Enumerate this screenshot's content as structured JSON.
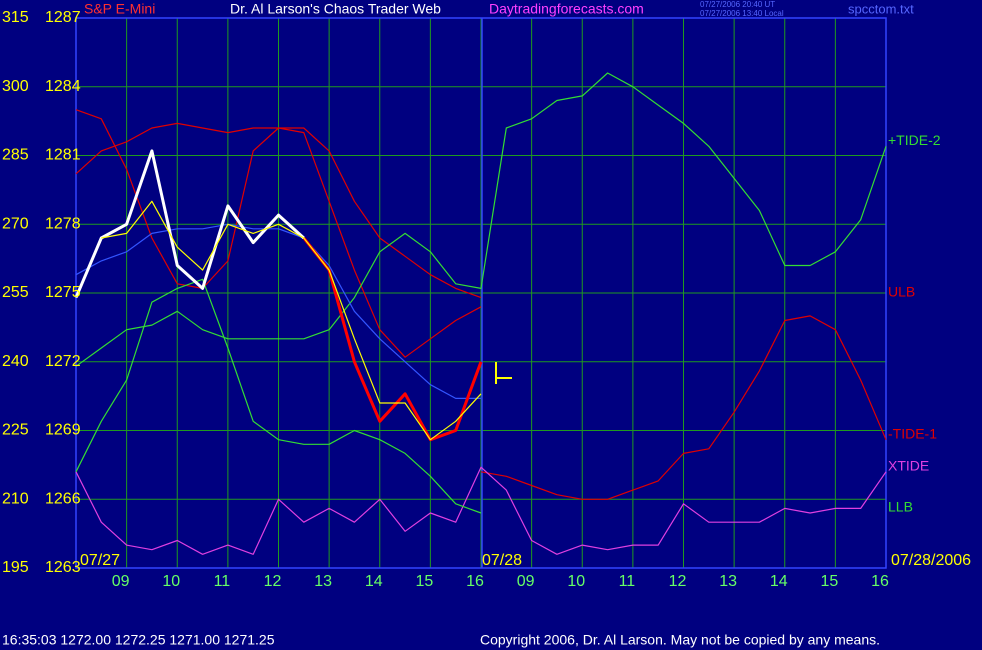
{
  "chart_data": {
    "type": "line",
    "instrument": "S&P E-Mini",
    "title": "Dr. Al Larson's Chaos Trader Web",
    "website": "Daytradingforecasts.com",
    "timestamps": [
      "07/27/2006 20:40 UT",
      "07/27/2006 13:40 Local"
    ],
    "file": "spcctom.txt",
    "quote": "16:35:03  1272.00 1272.25 1271.00 1271.25",
    "copyright": "Copyright 2006, Dr. Al Larson. May not be copied by any means.",
    "date_labels": [
      "07/27",
      "07/28",
      "07/28/2006"
    ],
    "x": [
      0,
      0.5,
      1,
      1.5,
      2,
      2.5,
      3,
      3.5,
      4,
      4.5,
      5,
      5.5,
      6,
      6.5,
      7,
      7.5,
      8,
      8.5,
      9,
      9.5,
      10,
      10.5,
      11,
      11.5,
      12,
      12.5,
      13,
      13.5,
      14,
      14.5,
      15,
      15.5,
      16
    ],
    "xlim": [
      0,
      16
    ],
    "xticks": [
      {
        "value": 1,
        "label": "09"
      },
      {
        "value": 2,
        "label": "10"
      },
      {
        "value": 3,
        "label": "11"
      },
      {
        "value": 4,
        "label": "12"
      },
      {
        "value": 5,
        "label": "13"
      },
      {
        "value": 6,
        "label": "14"
      },
      {
        "value": 7,
        "label": "15"
      },
      {
        "value": 8,
        "label": "16"
      },
      {
        "value": 9,
        "label": "09"
      },
      {
        "value": 10,
        "label": "10"
      },
      {
        "value": 11,
        "label": "11"
      },
      {
        "value": 12,
        "label": "12"
      },
      {
        "value": 13,
        "label": "13"
      },
      {
        "value": 14,
        "label": "14"
      },
      {
        "value": 15,
        "label": "15"
      },
      {
        "value": 16,
        "label": "16"
      }
    ],
    "ylim": [
      195,
      315
    ],
    "yticks": [
      195,
      210,
      225,
      240,
      255,
      270,
      285,
      300,
      315
    ],
    "y2lim": [
      1263,
      1287
    ],
    "y2ticks": [
      1263,
      1266,
      1269,
      1272,
      1275,
      1278,
      1281,
      1284,
      1287
    ],
    "grid": true,
    "series": [
      {
        "color": "#e00000",
        "values": [
          295,
          293,
          282,
          267,
          257,
          256,
          262,
          286,
          291,
          290,
          275,
          260,
          247,
          241,
          245,
          249,
          252,
          null,
          null,
          null,
          null,
          null,
          null,
          null,
          null,
          null,
          null,
          null,
          null,
          null,
          null,
          null,
          null
        ]
      },
      {
        "name": "ULB",
        "color": "#e00000",
        "values": [
          281,
          286,
          288,
          291,
          292,
          291,
          290,
          291,
          291,
          291,
          286,
          275,
          267,
          263,
          259,
          256,
          254,
          null,
          null,
          null,
          null,
          null,
          null,
          null,
          null,
          null,
          null,
          null,
          null,
          null,
          null,
          null,
          null
        ]
      },
      {
        "name": "+TIDE-2",
        "color": "#33dd33",
        "values": [
          239,
          243,
          247,
          248,
          251,
          247,
          245,
          245,
          245,
          245,
          247,
          254,
          264,
          268,
          264,
          257,
          256,
          291,
          293,
          297,
          298,
          303,
          300,
          296,
          292,
          287,
          280,
          273,
          261,
          261,
          264,
          271,
          287
        ]
      },
      {
        "name": "-TIDE-1",
        "color": "#e00000",
        "values": [
          null,
          null,
          null,
          null,
          null,
          null,
          null,
          null,
          null,
          null,
          null,
          null,
          null,
          null,
          null,
          null,
          216,
          215,
          213,
          211,
          210,
          210,
          212,
          214,
          220,
          221,
          229,
          238,
          249,
          250,
          247,
          236,
          223
        ]
      },
      {
        "name": "XTIDE",
        "color": "#e040e0",
        "values": [
          216,
          205,
          200,
          199,
          201,
          198,
          200,
          198,
          210,
          205,
          208,
          205,
          210,
          203,
          207,
          205,
          217,
          212,
          201,
          198,
          200,
          199,
          200,
          200,
          209,
          205,
          205,
          205,
          208,
          207,
          208,
          208,
          216
        ]
      },
      {
        "name": "LLB",
        "color": "#33dd33",
        "values": [
          216,
          227,
          236,
          253,
          256,
          258,
          243,
          227,
          223,
          222,
          222,
          225,
          223,
          220,
          215,
          209,
          207,
          null,
          null,
          null,
          null,
          null,
          null,
          null,
          null,
          null,
          null,
          null,
          null,
          null,
          null,
          null,
          null
        ]
      },
      {
        "color": "#3355ff",
        "values": [
          259,
          262,
          264,
          268,
          269,
          269,
          270,
          269,
          269,
          267,
          261,
          251,
          245,
          240,
          235,
          232,
          232,
          null,
          null,
          null,
          null,
          null,
          null,
          null,
          null,
          null,
          null,
          null,
          null,
          null,
          null,
          null,
          null
        ]
      },
      {
        "color": "#ff0000",
        "width": 3,
        "values": [
          null,
          null,
          null,
          null,
          null,
          null,
          null,
          null,
          null,
          267,
          260,
          240,
          227,
          233,
          223,
          225,
          240,
          null,
          null,
          null,
          null,
          null,
          null,
          null,
          null,
          null,
          null,
          null,
          null,
          null,
          null,
          null,
          null
        ]
      },
      {
        "color": "#ffffff",
        "width": 3,
        "values": [
          254,
          267,
          270,
          286,
          261,
          256,
          274,
          266,
          272,
          267,
          null,
          null,
          null,
          null,
          null,
          null,
          null,
          null,
          null,
          null,
          null,
          null,
          null,
          null,
          null,
          null,
          null,
          null,
          null,
          null,
          null,
          null,
          null
        ]
      },
      {
        "color": "#ffff00",
        "values": [
          null,
          267,
          268,
          275,
          265,
          260,
          270,
          268,
          270,
          267,
          260,
          245,
          231,
          231,
          223,
          227,
          233,
          null,
          null,
          null,
          null,
          null,
          null,
          null,
          null,
          null,
          null,
          null,
          null,
          null,
          null,
          null,
          null
        ]
      }
    ]
  }
}
